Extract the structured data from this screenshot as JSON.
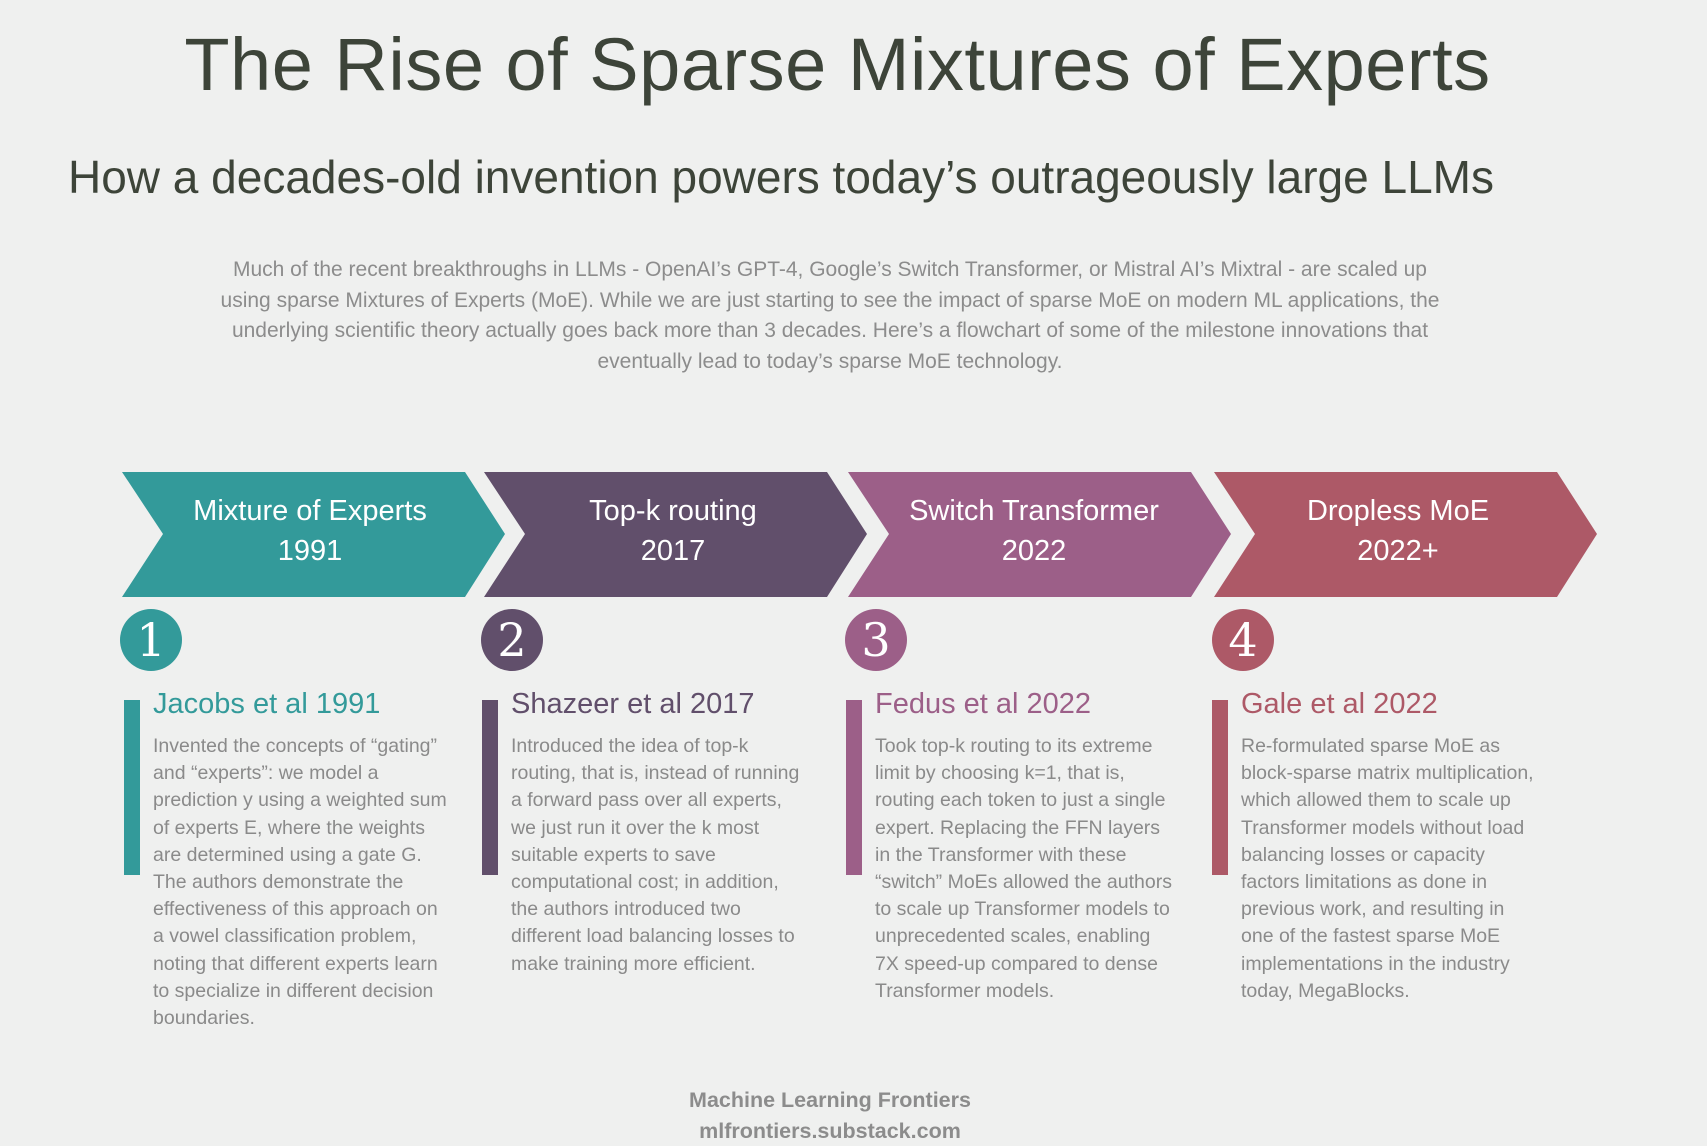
{
  "title": "The Rise of Sparse Mixtures of Experts",
  "subtitle": "How a decades-old invention powers today’s outrageously large LLMs",
  "intro": "Much of the recent breakthroughs in LLMs - OpenAI’s GPT-4, Google’s Switch Transformer, or Mistral AI’s Mixtral - are scaled up using sparse Mixtures of Experts (MoE). While we are just starting to see the impact of sparse MoE on modern ML applications, the underlying scientific theory actually goes back more than 3 decades. Here’s a flowchart of some of the milestone innovations that eventually lead to today’s sparse MoE technology.",
  "steps": [
    {
      "chevron_name": "Mixture of Experts",
      "chevron_year": "1991",
      "number": "1",
      "heading": "Jacobs et al 1991",
      "text": "Invented the concepts of “gating” and “experts”: we model a prediction y using a weighted sum of experts E, where the weights are determined using a gate G. The authors demonstrate the effectiveness of this approach on a vowel classification problem, noting that different experts learn to specialize in different decision boundaries.",
      "color": "#339a9a"
    },
    {
      "chevron_name": "Top-k routing",
      "chevron_year": "2017",
      "number": "2",
      "heading": "Shazeer et al 2017",
      "text": "Introduced the idea of top-k routing, that is, instead of running a forward pass over all experts, we just run it over the k most suitable experts to save computational cost; in addition, the authors introduced two different load balancing losses to make training more efficient.",
      "color": "#614f6b"
    },
    {
      "chevron_name": "Switch Transformer",
      "chevron_year": "2022",
      "number": "3",
      "heading": "Fedus et al 2022",
      "text": "Took top-k routing to its extreme limit by choosing k=1, that is, routing each token to just a single expert. Replacing the FFN layers in the Transformer with these “switch” MoEs allowed the authors to scale up Transformer models to unprecedented scales, enabling 7X speed-up compared to dense Transformer models.",
      "color": "#9c5f88"
    },
    {
      "chevron_name": "Dropless MoE",
      "chevron_year": "2022+",
      "number": "4",
      "heading": "Gale et al 2022",
      "text": "Re-formulated sparse MoE as block-sparse matrix multiplication, which allowed them to scale up Transformer models without load balancing losses or capacity factors limitations as done in previous work, and resulting in one of the fastest sparse MoE implementations in the industry today, MegaBlocks.",
      "color": "#ad5967"
    }
  ],
  "footer": {
    "line1": "Machine Learning Frontiers",
    "line2": "mlfrontiers.substack.com"
  }
}
